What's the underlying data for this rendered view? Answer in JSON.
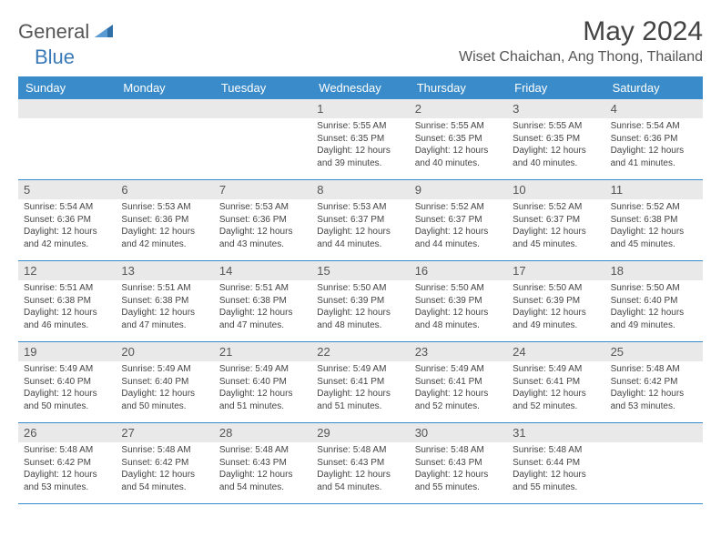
{
  "logo": {
    "text1": "General",
    "text2": "Blue",
    "icon_color": "#2f6fa8"
  },
  "title": "May 2024",
  "location": "Wiset Chaichan, Ang Thong, Thailand",
  "colors": {
    "header_bg": "#3a8bc9",
    "header_text": "#ffffff",
    "daynum_bg": "#e9e9e9",
    "row_border": "#3a8bc9",
    "text": "#444444"
  },
  "typography": {
    "title_fontsize": 30,
    "location_fontsize": 16,
    "dayheader_fontsize": 13,
    "daynum_fontsize": 13,
    "info_fontsize": 10
  },
  "day_headers": [
    "Sunday",
    "Monday",
    "Tuesday",
    "Wednesday",
    "Thursday",
    "Friday",
    "Saturday"
  ],
  "weeks": [
    [
      {
        "num": "",
        "empty": true
      },
      {
        "num": "",
        "empty": true
      },
      {
        "num": "",
        "empty": true
      },
      {
        "num": "1",
        "sunrise": "Sunrise: 5:55 AM",
        "sunset": "Sunset: 6:35 PM",
        "daylight1": "Daylight: 12 hours",
        "daylight2": "and 39 minutes."
      },
      {
        "num": "2",
        "sunrise": "Sunrise: 5:55 AM",
        "sunset": "Sunset: 6:35 PM",
        "daylight1": "Daylight: 12 hours",
        "daylight2": "and 40 minutes."
      },
      {
        "num": "3",
        "sunrise": "Sunrise: 5:55 AM",
        "sunset": "Sunset: 6:35 PM",
        "daylight1": "Daylight: 12 hours",
        "daylight2": "and 40 minutes."
      },
      {
        "num": "4",
        "sunrise": "Sunrise: 5:54 AM",
        "sunset": "Sunset: 6:36 PM",
        "daylight1": "Daylight: 12 hours",
        "daylight2": "and 41 minutes."
      }
    ],
    [
      {
        "num": "5",
        "sunrise": "Sunrise: 5:54 AM",
        "sunset": "Sunset: 6:36 PM",
        "daylight1": "Daylight: 12 hours",
        "daylight2": "and 42 minutes."
      },
      {
        "num": "6",
        "sunrise": "Sunrise: 5:53 AM",
        "sunset": "Sunset: 6:36 PM",
        "daylight1": "Daylight: 12 hours",
        "daylight2": "and 42 minutes."
      },
      {
        "num": "7",
        "sunrise": "Sunrise: 5:53 AM",
        "sunset": "Sunset: 6:36 PM",
        "daylight1": "Daylight: 12 hours",
        "daylight2": "and 43 minutes."
      },
      {
        "num": "8",
        "sunrise": "Sunrise: 5:53 AM",
        "sunset": "Sunset: 6:37 PM",
        "daylight1": "Daylight: 12 hours",
        "daylight2": "and 44 minutes."
      },
      {
        "num": "9",
        "sunrise": "Sunrise: 5:52 AM",
        "sunset": "Sunset: 6:37 PM",
        "daylight1": "Daylight: 12 hours",
        "daylight2": "and 44 minutes."
      },
      {
        "num": "10",
        "sunrise": "Sunrise: 5:52 AM",
        "sunset": "Sunset: 6:37 PM",
        "daylight1": "Daylight: 12 hours",
        "daylight2": "and 45 minutes."
      },
      {
        "num": "11",
        "sunrise": "Sunrise: 5:52 AM",
        "sunset": "Sunset: 6:38 PM",
        "daylight1": "Daylight: 12 hours",
        "daylight2": "and 45 minutes."
      }
    ],
    [
      {
        "num": "12",
        "sunrise": "Sunrise: 5:51 AM",
        "sunset": "Sunset: 6:38 PM",
        "daylight1": "Daylight: 12 hours",
        "daylight2": "and 46 minutes."
      },
      {
        "num": "13",
        "sunrise": "Sunrise: 5:51 AM",
        "sunset": "Sunset: 6:38 PM",
        "daylight1": "Daylight: 12 hours",
        "daylight2": "and 47 minutes."
      },
      {
        "num": "14",
        "sunrise": "Sunrise: 5:51 AM",
        "sunset": "Sunset: 6:38 PM",
        "daylight1": "Daylight: 12 hours",
        "daylight2": "and 47 minutes."
      },
      {
        "num": "15",
        "sunrise": "Sunrise: 5:50 AM",
        "sunset": "Sunset: 6:39 PM",
        "daylight1": "Daylight: 12 hours",
        "daylight2": "and 48 minutes."
      },
      {
        "num": "16",
        "sunrise": "Sunrise: 5:50 AM",
        "sunset": "Sunset: 6:39 PM",
        "daylight1": "Daylight: 12 hours",
        "daylight2": "and 48 minutes."
      },
      {
        "num": "17",
        "sunrise": "Sunrise: 5:50 AM",
        "sunset": "Sunset: 6:39 PM",
        "daylight1": "Daylight: 12 hours",
        "daylight2": "and 49 minutes."
      },
      {
        "num": "18",
        "sunrise": "Sunrise: 5:50 AM",
        "sunset": "Sunset: 6:40 PM",
        "daylight1": "Daylight: 12 hours",
        "daylight2": "and 49 minutes."
      }
    ],
    [
      {
        "num": "19",
        "sunrise": "Sunrise: 5:49 AM",
        "sunset": "Sunset: 6:40 PM",
        "daylight1": "Daylight: 12 hours",
        "daylight2": "and 50 minutes."
      },
      {
        "num": "20",
        "sunrise": "Sunrise: 5:49 AM",
        "sunset": "Sunset: 6:40 PM",
        "daylight1": "Daylight: 12 hours",
        "daylight2": "and 50 minutes."
      },
      {
        "num": "21",
        "sunrise": "Sunrise: 5:49 AM",
        "sunset": "Sunset: 6:40 PM",
        "daylight1": "Daylight: 12 hours",
        "daylight2": "and 51 minutes."
      },
      {
        "num": "22",
        "sunrise": "Sunrise: 5:49 AM",
        "sunset": "Sunset: 6:41 PM",
        "daylight1": "Daylight: 12 hours",
        "daylight2": "and 51 minutes."
      },
      {
        "num": "23",
        "sunrise": "Sunrise: 5:49 AM",
        "sunset": "Sunset: 6:41 PM",
        "daylight1": "Daylight: 12 hours",
        "daylight2": "and 52 minutes."
      },
      {
        "num": "24",
        "sunrise": "Sunrise: 5:49 AM",
        "sunset": "Sunset: 6:41 PM",
        "daylight1": "Daylight: 12 hours",
        "daylight2": "and 52 minutes."
      },
      {
        "num": "25",
        "sunrise": "Sunrise: 5:48 AM",
        "sunset": "Sunset: 6:42 PM",
        "daylight1": "Daylight: 12 hours",
        "daylight2": "and 53 minutes."
      }
    ],
    [
      {
        "num": "26",
        "sunrise": "Sunrise: 5:48 AM",
        "sunset": "Sunset: 6:42 PM",
        "daylight1": "Daylight: 12 hours",
        "daylight2": "and 53 minutes."
      },
      {
        "num": "27",
        "sunrise": "Sunrise: 5:48 AM",
        "sunset": "Sunset: 6:42 PM",
        "daylight1": "Daylight: 12 hours",
        "daylight2": "and 54 minutes."
      },
      {
        "num": "28",
        "sunrise": "Sunrise: 5:48 AM",
        "sunset": "Sunset: 6:43 PM",
        "daylight1": "Daylight: 12 hours",
        "daylight2": "and 54 minutes."
      },
      {
        "num": "29",
        "sunrise": "Sunrise: 5:48 AM",
        "sunset": "Sunset: 6:43 PM",
        "daylight1": "Daylight: 12 hours",
        "daylight2": "and 54 minutes."
      },
      {
        "num": "30",
        "sunrise": "Sunrise: 5:48 AM",
        "sunset": "Sunset: 6:43 PM",
        "daylight1": "Daylight: 12 hours",
        "daylight2": "and 55 minutes."
      },
      {
        "num": "31",
        "sunrise": "Sunrise: 5:48 AM",
        "sunset": "Sunset: 6:44 PM",
        "daylight1": "Daylight: 12 hours",
        "daylight2": "and 55 minutes."
      },
      {
        "num": "",
        "empty": true
      }
    ]
  ]
}
